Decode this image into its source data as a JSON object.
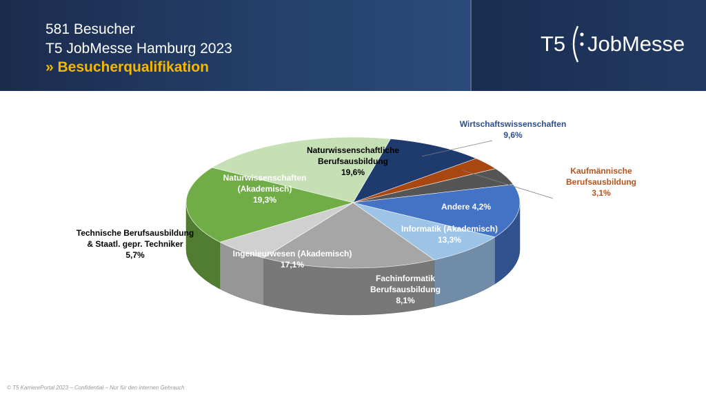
{
  "header": {
    "line1": "581 Besucher",
    "line2": "T5 JobMesse Hamburg 2023",
    "line3": "» Besucherqualifikation",
    "logo_left": "T5",
    "logo_right": "JobMesse"
  },
  "footer": {
    "text": "© T5 KarrierePortal 2023 – Confidential – Nur für den internen Gebrauch"
  },
  "chart_data": {
    "type": "pie",
    "title": "",
    "slices": [
      {
        "label": "Wirtschaftswissenschaften",
        "value": 9.6,
        "value_label": "9,6%",
        "color": "#1f3b6e",
        "label_color": "#2a4f8c",
        "label_outside": true
      },
      {
        "label": "Kaufmännische Berufsausbildung",
        "value": 3.1,
        "value_label": "3,1%",
        "color": "#a8470f",
        "label_color": "#b5531a",
        "label_outside": true
      },
      {
        "label": "Andere",
        "value": 4.2,
        "value_label": "4,2%",
        "color": "#555555",
        "label_color": "#ffffff",
        "label_outside": false
      },
      {
        "label": "Informatik (Akademisch)",
        "value": 13.3,
        "value_label": "13,3%",
        "color": "#4472c4",
        "label_color": "#ffffff",
        "label_outside": false
      },
      {
        "label": "Fachinformatik Berufsausbildung",
        "value": 8.1,
        "value_label": "8,1%",
        "color": "#9dc3e6",
        "label_color": "#ffffff",
        "label_outside": false
      },
      {
        "label": "Ingenieurwesen (Akademisch)",
        "value": 17.1,
        "value_label": "17,1%",
        "color": "#a6a6a6",
        "label_color": "#ffffff",
        "label_outside": false
      },
      {
        "label": "Technische Berufsausbildung & Staatl. gepr. Techniker",
        "value": 5.7,
        "value_label": "5,7%",
        "color": "#d0d0d0",
        "label_color": "#000000",
        "label_outside": true
      },
      {
        "label": "Naturwissenschaften (Akademisch)",
        "value": 19.3,
        "value_label": "19,3%",
        "color": "#70ad47",
        "label_color": "#ffffff",
        "label_outside": false
      },
      {
        "label": "Naturwissenschaftliche Berufsausbildung",
        "value": 19.6,
        "value_label": "19,6%",
        "color": "#c5e0b4",
        "label_color": "#000000",
        "label_outside": false
      }
    ]
  }
}
